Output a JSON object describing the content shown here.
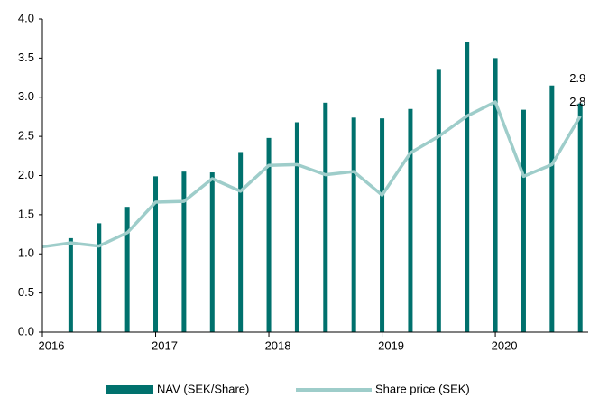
{
  "chart_data": {
    "type": "bar",
    "xlim": [
      2016,
      2020.82
    ],
    "xticks": [
      2016,
      2017,
      2018,
      2019,
      2020
    ],
    "ylim": [
      0,
      4
    ],
    "yticks": [
      {
        "value": 0,
        "label": "0.0"
      },
      {
        "value": 0.5,
        "label": "0.5"
      },
      {
        "value": 1,
        "label": "1.0"
      },
      {
        "value": 1.5,
        "label": "1.5"
      },
      {
        "value": 2,
        "label": "2.0"
      },
      {
        "value": 2.5,
        "label": "2.5"
      },
      {
        "value": 3,
        "label": "3.0"
      },
      {
        "value": 3.5,
        "label": "3.5"
      },
      {
        "value": 4,
        "label": "4.0"
      }
    ],
    "grid": false,
    "legend": "bottom",
    "series": [
      {
        "name": "NAV (SEK/Share)",
        "type": "bar",
        "color": "#00716d",
        "x": [
          2016.25,
          2016.5,
          2016.75,
          2017,
          2017.25,
          2017.5,
          2017.75,
          2018,
          2018.25,
          2018.5,
          2018.75,
          2019,
          2019.25,
          2019.5,
          2019.75,
          2020,
          2020.25,
          2020.5,
          2020.75
        ],
        "values": [
          1.2,
          1.39,
          1.6,
          1.99,
          2.05,
          2.04,
          2.3,
          2.48,
          2.68,
          2.93,
          2.74,
          2.73,
          2.85,
          3.35,
          3.71,
          3.5,
          2.84,
          3.15,
          2.92
        ],
        "value_labels": [
          null,
          null,
          null,
          null,
          null,
          null,
          null,
          null,
          null,
          null,
          null,
          null,
          null,
          null,
          null,
          null,
          null,
          null,
          "2.9"
        ]
      },
      {
        "name": "Share price (SEK)",
        "type": "line",
        "color": "#9ecdca",
        "x": [
          2016,
          2016.25,
          2016.5,
          2016.75,
          2017,
          2017.25,
          2017.5,
          2017.75,
          2018,
          2018.25,
          2018.5,
          2018.75,
          2019,
          2019.25,
          2019.5,
          2019.75,
          2020,
          2020.25,
          2020.5,
          2020.75
        ],
        "values": [
          1.09,
          1.14,
          1.1,
          1.27,
          1.66,
          1.67,
          1.96,
          1.8,
          2.13,
          2.14,
          2.01,
          2.05,
          1.75,
          2.29,
          2.5,
          2.76,
          2.94,
          1.99,
          2.14,
          2.76
        ],
        "value_labels": [
          null,
          null,
          null,
          null,
          null,
          null,
          null,
          null,
          null,
          null,
          null,
          null,
          null,
          null,
          null,
          null,
          null,
          null,
          null,
          "2.8"
        ]
      }
    ]
  }
}
